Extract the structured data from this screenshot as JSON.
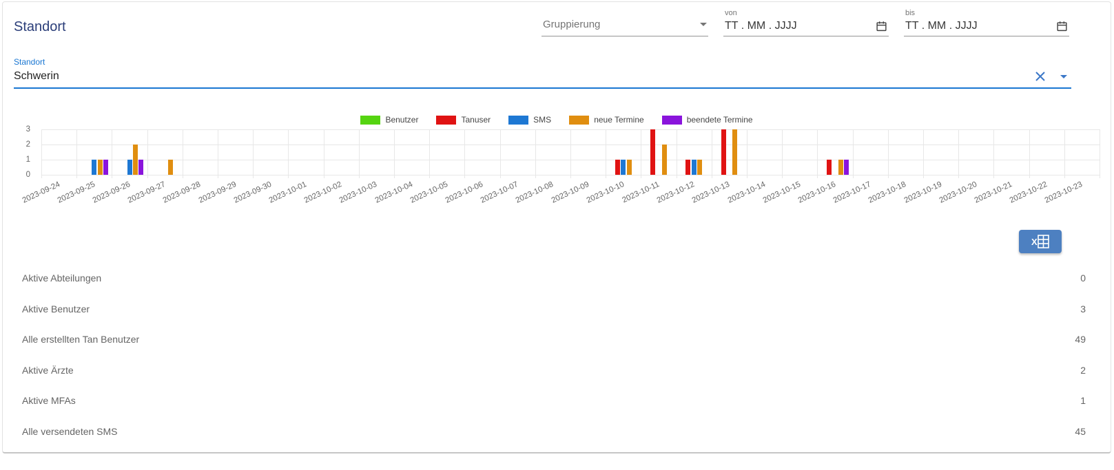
{
  "header": {
    "title": "Standort",
    "grouping": {
      "label": "Gruppierung"
    },
    "date_from": {
      "label": "von",
      "placeholder": "TT . MM . JJJJ"
    },
    "date_to": {
      "label": "bis",
      "placeholder": "TT . MM . JJJJ"
    }
  },
  "location_field": {
    "label": "Standort",
    "value": "Schwerin"
  },
  "chart_data": {
    "type": "bar",
    "title": "",
    "xlabel": "",
    "ylabel": "",
    "ylim": [
      0,
      3
    ],
    "yticks": [
      0,
      1,
      2,
      3
    ],
    "grid": true,
    "legend_position": "top",
    "categories": [
      "2023-09-24",
      "2023-09-25",
      "2023-09-26",
      "2023-09-27",
      "2023-09-28",
      "2023-09-29",
      "2023-09-30",
      "2023-10-01",
      "2023-10-02",
      "2023-10-03",
      "2023-10-04",
      "2023-10-05",
      "2023-10-06",
      "2023-10-07",
      "2023-10-08",
      "2023-10-09",
      "2023-10-10",
      "2023-10-11",
      "2023-10-12",
      "2023-10-13",
      "2023-10-14",
      "2023-10-15",
      "2023-10-16",
      "2023-10-17",
      "2023-10-18",
      "2023-10-19",
      "2023-10-20",
      "2023-10-21",
      "2023-10-22",
      "2023-10-23"
    ],
    "series": [
      {
        "name": "Benutzer",
        "color": "#55d411",
        "values": [
          0,
          0,
          0,
          0,
          0,
          0,
          0,
          0,
          0,
          0,
          0,
          0,
          0,
          0,
          0,
          0,
          0,
          0,
          0,
          0,
          0,
          0,
          0,
          0,
          0,
          0,
          0,
          0,
          0,
          0
        ]
      },
      {
        "name": "Tanuser",
        "color": "#e01313",
        "values": [
          0,
          0,
          0,
          0,
          0,
          0,
          0,
          0,
          0,
          0,
          0,
          0,
          0,
          0,
          0,
          0,
          1,
          3,
          1,
          3,
          0,
          0,
          1,
          0,
          0,
          0,
          0,
          0,
          0,
          0
        ]
      },
      {
        "name": "SMS",
        "color": "#1e78d3",
        "values": [
          0,
          1,
          1,
          0,
          0,
          0,
          0,
          0,
          0,
          0,
          0,
          0,
          0,
          0,
          0,
          0,
          1,
          0,
          1,
          0,
          0,
          0,
          0,
          0,
          0,
          0,
          0,
          0,
          0,
          0
        ]
      },
      {
        "name": "neue Termine",
        "color": "#e08e10",
        "values": [
          0,
          1,
          2,
          1,
          0,
          0,
          0,
          0,
          0,
          0,
          0,
          0,
          0,
          0,
          0,
          0,
          1,
          2,
          1,
          3,
          0,
          0,
          1,
          0,
          0,
          0,
          0,
          0,
          0,
          0
        ]
      },
      {
        "name": "beendete Termine",
        "color": "#8a14dc",
        "values": [
          0,
          1,
          1,
          0,
          0,
          0,
          0,
          0,
          0,
          0,
          0,
          0,
          0,
          0,
          0,
          0,
          0,
          0,
          0,
          0,
          0,
          0,
          1,
          0,
          0,
          0,
          0,
          0,
          0,
          0
        ]
      }
    ]
  },
  "export_button": {
    "icon": "excel-export-icon"
  },
  "stats": [
    {
      "label": "Aktive Abteilungen",
      "value": "0"
    },
    {
      "label": "Aktive Benutzer",
      "value": "3"
    },
    {
      "label": "Alle erstellten Tan Benutzer",
      "value": "49"
    },
    {
      "label": "Aktive Ärzte",
      "value": "2"
    },
    {
      "label": "Aktive MFAs",
      "value": "1"
    },
    {
      "label": "Alle versendeten SMS",
      "value": "45"
    }
  ],
  "colors": {
    "accent_blue": "#1976d2",
    "title_navy": "#2b3e79",
    "grid_gray": "#e7e7e7",
    "export_button_blue": "#4d80c1"
  }
}
